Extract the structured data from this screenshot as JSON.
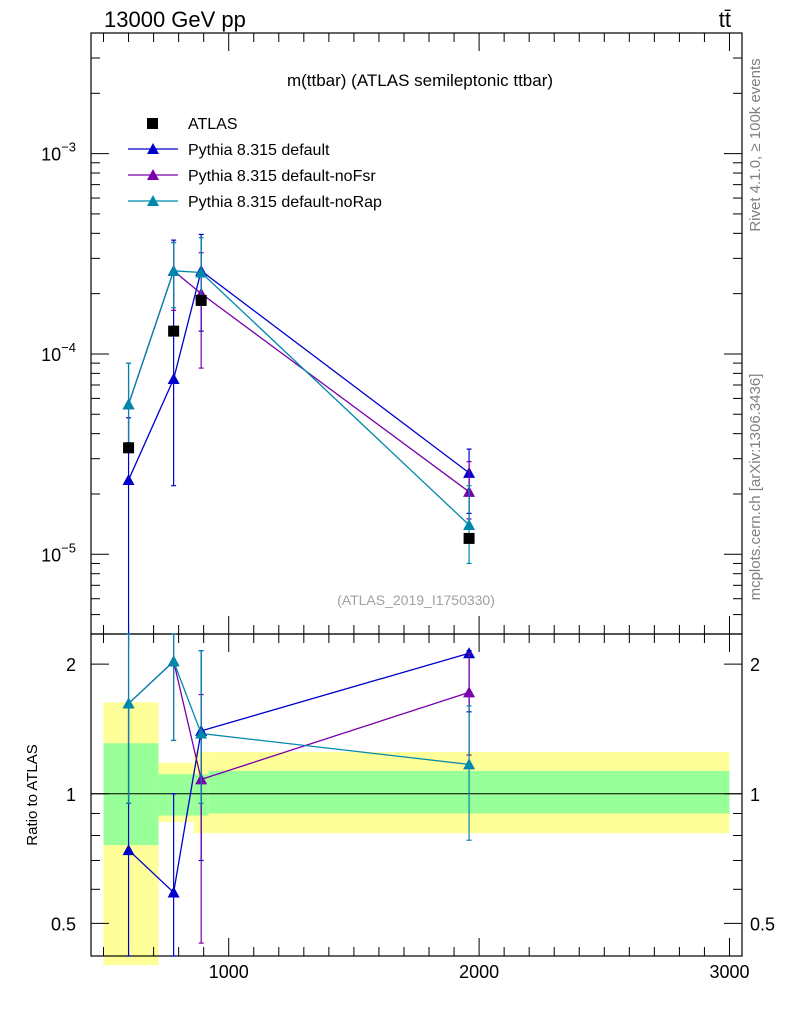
{
  "header": {
    "energy": "13000 GeV pp",
    "process": "tt̄"
  },
  "side_labels": {
    "rivet": "Rivet 4.1.0, ≥ 100k events",
    "mcplots": "mcplots.cern.ch [arXiv:1306.3436]"
  },
  "colors": {
    "ATLAS": "#000000",
    "default": "#0000cc",
    "noFsr": "#7a00aa",
    "noRap": "#0088aa",
    "band_inner": "#99ff99",
    "band_outer": "#ffff99"
  },
  "chart_data": [
    {
      "type": "scatter",
      "title": "m(ttbar) (ATLAS semileptonic ttbar)",
      "analysis": "(ATLAS_2019_I1750330)",
      "yscale": "log",
      "xlim": [
        450,
        3050
      ],
      "ylim": [
        4e-06,
        0.004
      ],
      "ytick_labels": [
        "10^-5",
        "10^-4",
        "10^-3"
      ],
      "legend": [
        "ATLAS",
        "Pythia 8.315 default",
        "Pythia 8.315 default-noFsr",
        "Pythia 8.315 default-noRap"
      ],
      "data": {
        "name": "ATLAS",
        "x": [
          600,
          780,
          890,
          1960
        ],
        "y": [
          3.4e-05,
          0.00013,
          0.000185,
          1.2e-05
        ]
      },
      "series": [
        {
          "name": "Pythia 8.315 default",
          "key": "default",
          "x": [
            600,
            780,
            890,
            1960
          ],
          "y": [
            2.35e-05,
            7.5e-05,
            0.00026,
            2.55e-05
          ],
          "err_lo": [
            1e-07,
            2.2e-05,
            0.00013,
            1.6e-05
          ],
          "err_hi": [
            4.8e-05,
            0.00037,
            0.000395,
            3.35e-05
          ]
        },
        {
          "name": "Pythia 8.315 default-noFsr",
          "key": "noFsr",
          "x": [
            600,
            780,
            890,
            1960
          ],
          "y": [
            5.6e-05,
            0.00026,
            0.0002,
            2.05e-05
          ],
          "err_lo": [
            3.6e-05,
            0.000165,
            8.5e-05,
            1.5e-05
          ],
          "err_hi": [
            9e-05,
            0.00036,
            0.00032,
            2.9e-05
          ]
        },
        {
          "name": "Pythia 8.315 default-noRap",
          "key": "noRap",
          "x": [
            600,
            780,
            890,
            1960
          ],
          "y": [
            5.6e-05,
            0.00026,
            0.000255,
            1.4e-05
          ],
          "err_lo": [
            3.6e-05,
            0.00017,
            0.000175,
            9e-06
          ],
          "err_hi": [
            9e-05,
            0.00036,
            0.00038,
            2.2e-05
          ]
        }
      ]
    },
    {
      "type": "scatter",
      "title": "",
      "ylabel": "Ratio to ATLAS",
      "yscale": "log",
      "xlim": [
        450,
        3050
      ],
      "ylim": [
        0.42,
        2.35
      ],
      "xticks": [
        1000,
        2000,
        3000
      ],
      "xtick_labels": [
        "1000",
        "2000",
        "3000"
      ],
      "yticks": [
        0.5,
        1,
        2
      ],
      "ytick_labels": [
        "0.5",
        "1",
        "2"
      ],
      "bins": [
        {
          "lo": 500,
          "hi": 720,
          "inner": [
            0.76,
            1.31
          ],
          "outer": [
            0.4,
            1.63
          ]
        },
        {
          "lo": 720,
          "hi": 860,
          "inner": [
            0.89,
            1.11
          ],
          "outer": [
            0.86,
            1.18
          ]
        },
        {
          "lo": 860,
          "hi": 920,
          "inner": [
            0.89,
            1.11
          ],
          "outer": [
            0.81,
            1.25
          ]
        },
        {
          "lo": 920,
          "hi": 3000,
          "inner": [
            0.9,
            1.13
          ],
          "outer": [
            0.81,
            1.25
          ]
        }
      ],
      "series": [
        {
          "name": "Pythia 8.315 default",
          "key": "default",
          "x": [
            600,
            780,
            890,
            1960
          ],
          "y": [
            0.74,
            0.59,
            1.4,
            2.12
          ],
          "err_lo": [
            0.3,
            0.3,
            0.7,
            1.55
          ],
          "err_hi": [
            1.6,
            1.0,
            2.15,
            2.15
          ]
        },
        {
          "name": "Pythia 8.315 default-noFsr",
          "key": "noFsr",
          "x": [
            600,
            780,
            890,
            1960
          ],
          "y": [
            1.62,
            2.03,
            1.08,
            1.72
          ],
          "err_lo": [
            0.95,
            1.33,
            0.45,
            1.23
          ],
          "err_hi": [
            2.45,
            2.45,
            1.7,
            2.12
          ]
        },
        {
          "name": "Pythia 8.315 default-noRap",
          "key": "noRap",
          "x": [
            600,
            780,
            890,
            1960
          ],
          "y": [
            1.62,
            2.03,
            1.38,
            1.17
          ],
          "err_lo": [
            0.95,
            1.33,
            0.95,
            0.78
          ],
          "err_hi": [
            2.45,
            2.45,
            2.15,
            1.6
          ]
        }
      ]
    }
  ]
}
